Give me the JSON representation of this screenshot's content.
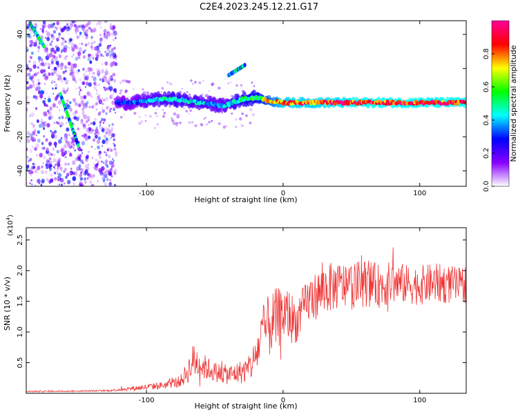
{
  "figure": {
    "title": "C2E4.2023.245.12.21.G17"
  },
  "chart_data": [
    {
      "type": "heatmap",
      "xlabel": "Height of straight line (km)",
      "ylabel": "Frequency (Hz)",
      "xlim": [
        -188,
        134
      ],
      "ylim": [
        -49,
        48
      ],
      "xticks": [
        -100,
        0,
        100
      ],
      "yticks": [
        -40,
        -20,
        0,
        20,
        40
      ],
      "grid": false,
      "colorbar": {
        "label": "Normalized spectral amplitude",
        "range": [
          0,
          1
        ],
        "ticks": [
          0.0,
          0.2,
          0.4,
          0.6,
          0.8
        ],
        "colormap": [
          "#ffffff",
          "#8800ff",
          "#0000ff",
          "#00ffff",
          "#00ff00",
          "#ffff00",
          "#ff0000",
          "#ff0099"
        ]
      },
      "ridge": {
        "x": [
          -122,
          -110,
          -100,
          -90,
          -80,
          -70,
          -60,
          -50,
          -45,
          -40,
          -30,
          -20,
          -10,
          0,
          20,
          40,
          60,
          80,
          100,
          120,
          134
        ],
        "y": [
          0,
          0,
          1,
          2,
          2,
          1,
          0,
          -1,
          -2,
          -1,
          2,
          3,
          1,
          0,
          0,
          0,
          0,
          0,
          0,
          0,
          0
        ],
        "amplitude": [
          0.3,
          0.35,
          0.4,
          0.45,
          0.5,
          0.45,
          0.45,
          0.4,
          0.4,
          0.45,
          0.55,
          0.6,
          0.75,
          0.9,
          0.9,
          0.92,
          0.95,
          0.95,
          0.95,
          0.95,
          0.95
        ]
      },
      "noisy_region_x": [
        -188,
        -122
      ],
      "diagonal_streaks": [
        {
          "x": [
            -185,
            -175
          ],
          "y": [
            46,
            33
          ]
        },
        {
          "x": [
            -163,
            -150
          ],
          "y": [
            5,
            -25
          ]
        },
        {
          "x": [
            -40,
            -28
          ],
          "y": [
            16,
            22
          ]
        }
      ]
    },
    {
      "type": "line",
      "xlabel": "Height of straight line (km)",
      "ylabel": "SNR (10 * v/v)",
      "yscale_label": "(x10",
      "yscale_exp": "4",
      "xlim": [
        -188,
        134
      ],
      "ylim": [
        0,
        2.7
      ],
      "xticks": [
        -100,
        0,
        100
      ],
      "yticks": [
        0.5,
        1.0,
        1.5,
        2.0,
        2.5
      ],
      "grid": false,
      "color": "#ee3333",
      "envelope": {
        "x": [
          -188,
          -130,
          -115,
          -100,
          -85,
          -75,
          -70,
          -65,
          -60,
          -55,
          -50,
          -40,
          -30,
          -25,
          -20,
          -15,
          -10,
          -5,
          0,
          5,
          10,
          15,
          20,
          25,
          30,
          40,
          50,
          60,
          70,
          80,
          90,
          100,
          110,
          120,
          130,
          134
        ],
        "mid": [
          0.03,
          0.04,
          0.07,
          0.1,
          0.14,
          0.2,
          0.35,
          0.55,
          0.45,
          0.4,
          0.35,
          0.3,
          0.35,
          0.4,
          0.6,
          1.0,
          1.1,
          1.2,
          1.3,
          1.25,
          1.15,
          1.4,
          1.55,
          1.6,
          1.7,
          1.75,
          1.75,
          1.8,
          1.75,
          1.8,
          1.78,
          1.76,
          1.8,
          1.78,
          1.75,
          1.8
        ],
        "amp": [
          0.02,
          0.02,
          0.05,
          0.08,
          0.1,
          0.15,
          0.3,
          0.5,
          0.35,
          0.3,
          0.25,
          0.25,
          0.3,
          0.35,
          0.5,
          0.7,
          0.8,
          0.8,
          0.7,
          0.7,
          0.5,
          0.55,
          0.6,
          0.6,
          0.65,
          0.6,
          0.6,
          0.6,
          0.55,
          0.55,
          0.5,
          0.5,
          0.5,
          0.5,
          0.45,
          0.5
        ]
      }
    }
  ]
}
